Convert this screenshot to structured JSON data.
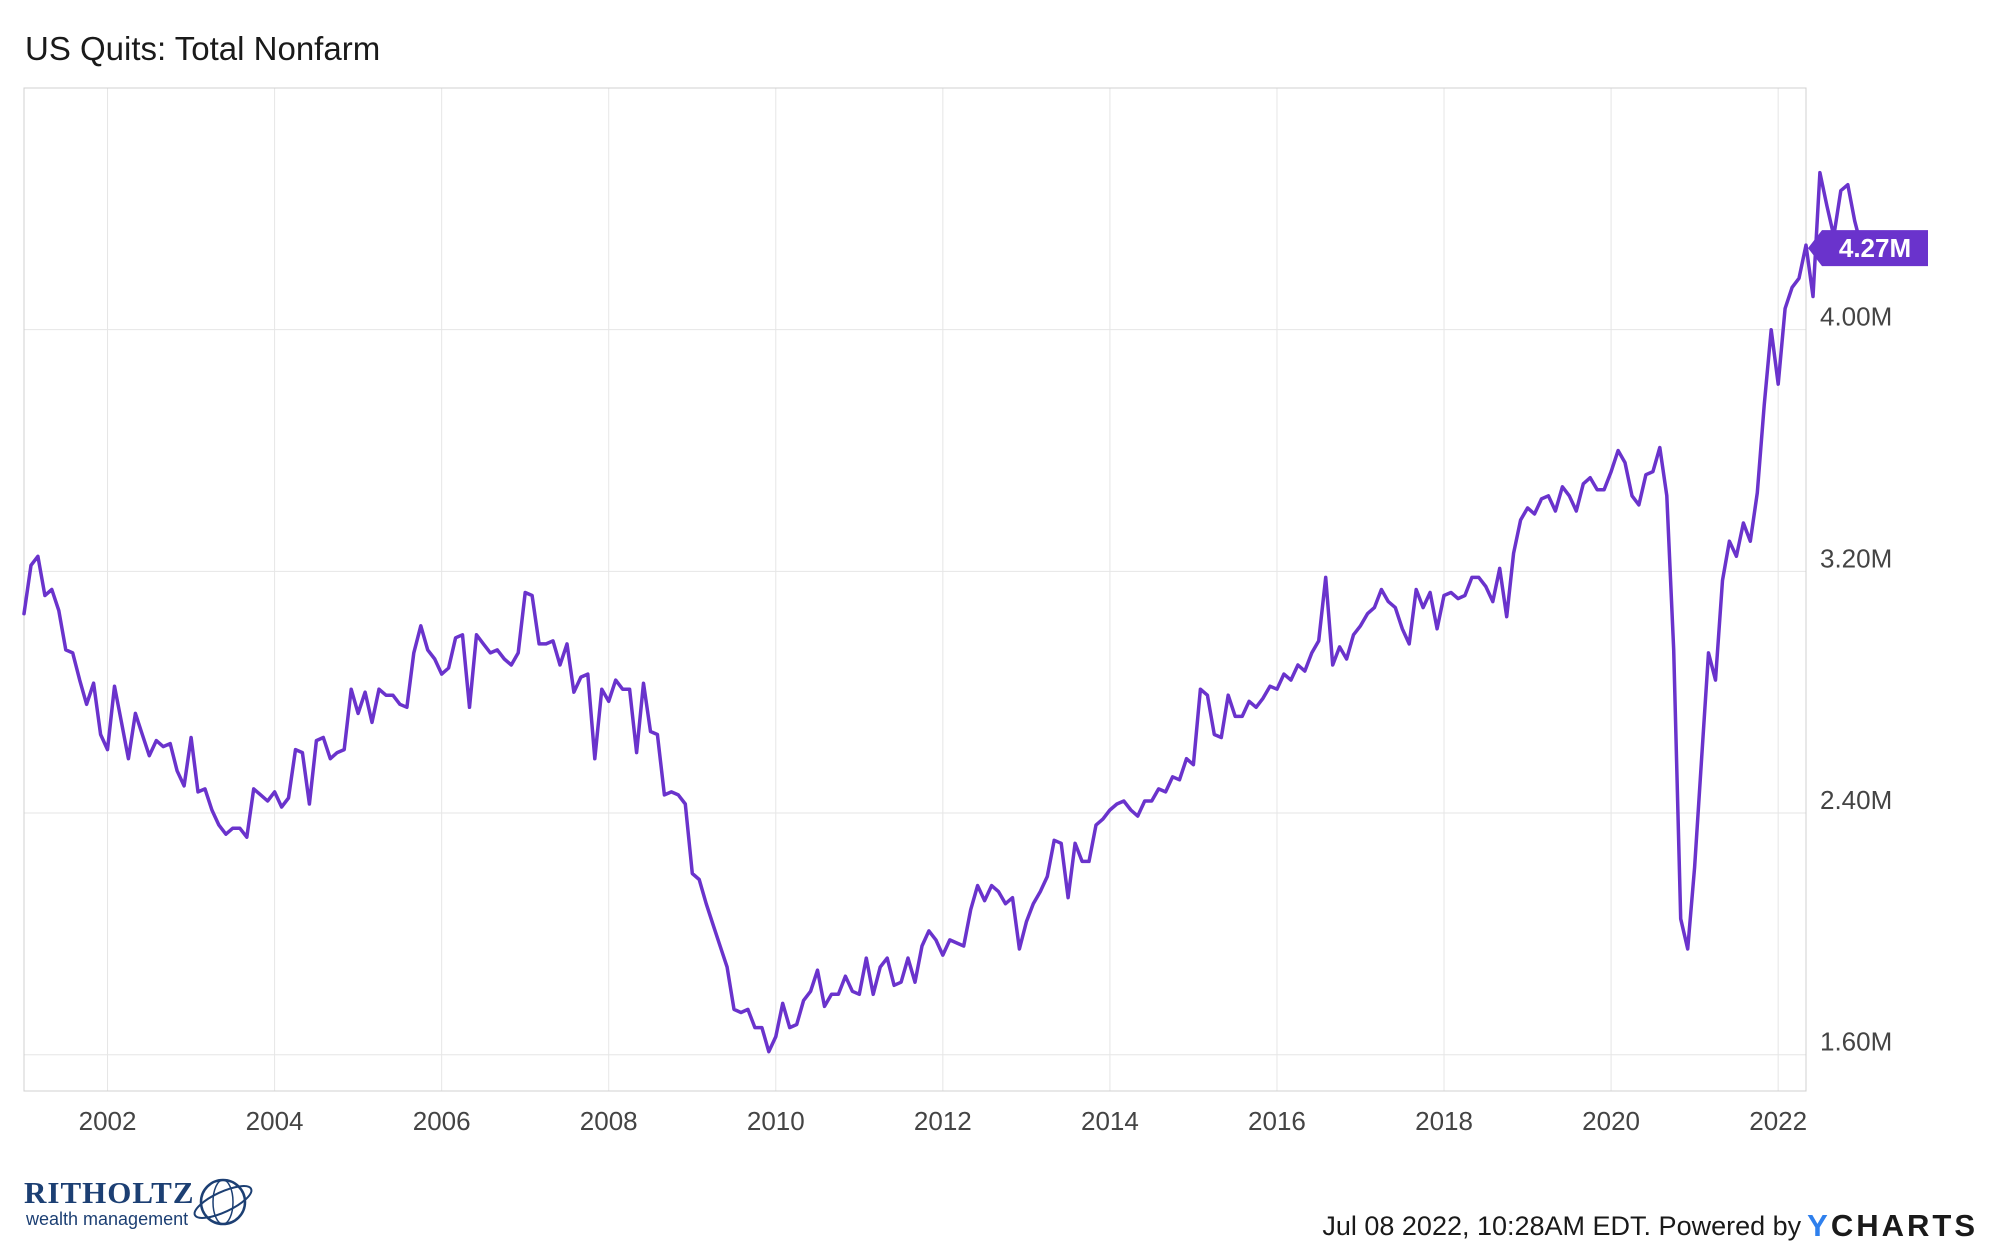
{
  "title": "US Quits: Total Nonfarm",
  "footer": {
    "timestamp": "Jul 08 2022, 10:28AM EDT. Powered by",
    "brand_y": "Y",
    "brand_rest": "CHARTS"
  },
  "logo": {
    "name": "RITHOLTZ",
    "subtitle": "wealth management"
  },
  "colors": {
    "line": "#6a33cc",
    "grid": "#e6e6e6",
    "badge": "#6a33cc"
  },
  "chart_data": {
    "type": "line",
    "title": "US Quits: Total Nonfarm",
    "x_ticks": [
      "2002",
      "2004",
      "2006",
      "2008",
      "2010",
      "2012",
      "2014",
      "2016",
      "2018",
      "2020",
      "2022"
    ],
    "y_ticks": [
      {
        "value": 1.6,
        "label": "1.60M"
      },
      {
        "value": 2.4,
        "label": "2.40M"
      },
      {
        "value": 3.2,
        "label": "3.20M"
      },
      {
        "value": 4.0,
        "label": "4.00M"
      }
    ],
    "ylim": [
      1.48,
      4.8
    ],
    "xlim": [
      "2001-01",
      "2022-05"
    ],
    "grid": true,
    "last_value_label": "4.27M",
    "series": [
      {
        "values_in_millions": true,
        "start": "2001-01",
        "frequency": "monthly",
        "values": [
          3.06,
          3.22,
          3.25,
          3.12,
          3.14,
          3.07,
          2.94,
          2.93,
          2.84,
          2.76,
          2.83,
          2.66,
          2.61,
          2.82,
          2.7,
          2.58,
          2.73,
          2.66,
          2.59,
          2.64,
          2.62,
          2.63,
          2.54,
          2.49,
          2.65,
          2.47,
          2.48,
          2.41,
          2.36,
          2.33,
          2.35,
          2.35,
          2.32,
          2.48,
          2.46,
          2.44,
          2.47,
          2.42,
          2.45,
          2.61,
          2.6,
          2.43,
          2.64,
          2.65,
          2.58,
          2.6,
          2.61,
          2.81,
          2.73,
          2.8,
          2.7,
          2.81,
          2.79,
          2.79,
          2.76,
          2.75,
          2.93,
          3.02,
          2.94,
          2.91,
          2.86,
          2.88,
          2.98,
          2.99,
          2.75,
          2.99,
          2.96,
          2.93,
          2.94,
          2.91,
          2.89,
          2.93,
          3.13,
          3.12,
          2.96,
          2.96,
          2.97,
          2.89,
          2.96,
          2.8,
          2.85,
          2.86,
          2.58,
          2.81,
          2.77,
          2.84,
          2.81,
          2.81,
          2.6,
          2.83,
          2.67,
          2.66,
          2.46,
          2.47,
          2.46,
          2.43,
          2.2,
          2.18,
          2.1,
          2.03,
          1.96,
          1.89,
          1.75,
          1.74,
          1.75,
          1.69,
          1.69,
          1.61,
          1.66,
          1.77,
          1.69,
          1.7,
          1.78,
          1.81,
          1.88,
          1.76,
          1.8,
          1.8,
          1.86,
          1.81,
          1.8,
          1.92,
          1.8,
          1.89,
          1.92,
          1.83,
          1.84,
          1.92,
          1.84,
          1.96,
          2.01,
          1.98,
          1.93,
          1.98,
          1.97,
          1.96,
          2.08,
          2.16,
          2.11,
          2.16,
          2.14,
          2.1,
          2.12,
          1.95,
          2.04,
          2.1,
          2.14,
          2.19,
          2.31,
          2.3,
          2.12,
          2.3,
          2.24,
          2.24,
          2.36,
          2.38,
          2.41,
          2.43,
          2.44,
          2.41,
          2.39,
          2.44,
          2.44,
          2.48,
          2.47,
          2.52,
          2.51,
          2.58,
          2.56,
          2.81,
          2.79,
          2.66,
          2.65,
          2.79,
          2.72,
          2.72,
          2.77,
          2.75,
          2.78,
          2.82,
          2.81,
          2.86,
          2.84,
          2.89,
          2.87,
          2.93,
          2.97,
          3.18,
          2.89,
          2.95,
          2.91,
          2.99,
          3.02,
          3.06,
          3.08,
          3.14,
          3.1,
          3.08,
          3.01,
          2.96,
          3.14,
          3.08,
          3.13,
          3.01,
          3.12,
          3.13,
          3.11,
          3.12,
          3.18,
          3.18,
          3.15,
          3.1,
          3.21,
          3.05,
          3.26,
          3.37,
          3.41,
          3.39,
          3.44,
          3.45,
          3.4,
          3.48,
          3.45,
          3.4,
          3.49,
          3.51,
          3.47,
          3.47,
          3.53,
          3.6,
          3.56,
          3.45,
          3.42,
          3.52,
          3.53,
          3.61,
          3.45,
          2.94,
          2.05,
          1.95,
          2.22,
          2.58,
          2.93,
          2.84,
          3.17,
          3.3,
          3.25,
          3.36,
          3.3,
          3.46,
          3.75,
          4.0,
          3.82,
          4.07,
          4.14,
          4.17,
          4.28,
          4.11,
          4.52,
          4.41,
          4.31,
          4.46,
          4.48,
          4.36,
          4.27
        ]
      }
    ]
  }
}
